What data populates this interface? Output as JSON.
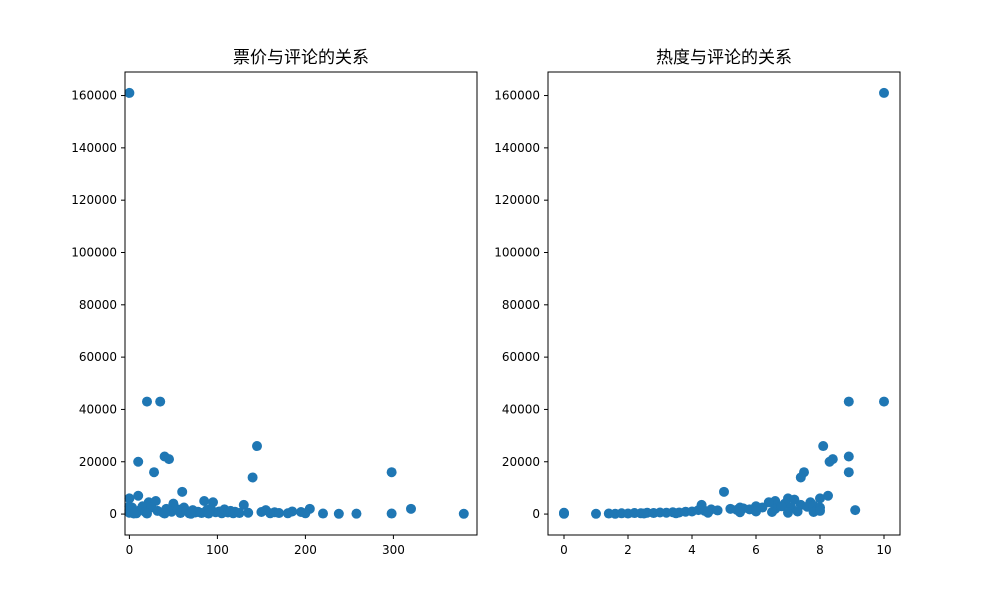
{
  "chart_data": [
    {
      "type": "scatter",
      "title": "票价与评论的关系",
      "xlabel": "",
      "ylabel": "",
      "xlim": [
        -5,
        395
      ],
      "ylim": [
        -8000,
        169000
      ],
      "xticks": [
        0,
        100,
        200,
        300
      ],
      "yticks": [
        0,
        20000,
        40000,
        60000,
        80000,
        100000,
        120000,
        140000,
        160000
      ],
      "grid": false,
      "color": "#1f77b4",
      "points": [
        [
          0,
          161000
        ],
        [
          20,
          43000
        ],
        [
          35,
          43000
        ],
        [
          145,
          26000
        ],
        [
          40,
          22000
        ],
        [
          45,
          21000
        ],
        [
          10,
          20000
        ],
        [
          298,
          16000
        ],
        [
          28,
          16000
        ],
        [
          140,
          14000
        ],
        [
          60,
          8500
        ],
        [
          10,
          7000
        ],
        [
          0,
          6000
        ],
        [
          85,
          5000
        ],
        [
          95,
          4500
        ],
        [
          22,
          4500
        ],
        [
          30,
          5000
        ],
        [
          50,
          4000
        ],
        [
          130,
          3500
        ],
        [
          320,
          2000
        ],
        [
          205,
          2000
        ],
        [
          185,
          1000
        ],
        [
          0,
          3000
        ],
        [
          0,
          1500
        ],
        [
          0,
          500
        ],
        [
          3,
          2500
        ],
        [
          6,
          1000
        ],
        [
          8,
          300
        ],
        [
          12,
          1500
        ],
        [
          15,
          3000
        ],
        [
          18,
          800
        ],
        [
          25,
          2500
        ],
        [
          32,
          1200
        ],
        [
          38,
          600
        ],
        [
          42,
          2000
        ],
        [
          48,
          900
        ],
        [
          55,
          1800
        ],
        [
          58,
          400
        ],
        [
          62,
          2500
        ],
        [
          65,
          1200
        ],
        [
          68,
          300
        ],
        [
          72,
          1500
        ],
        [
          75,
          600
        ],
        [
          78,
          900
        ],
        [
          82,
          400
        ],
        [
          88,
          1500
        ],
        [
          92,
          2000
        ],
        [
          98,
          700
        ],
        [
          102,
          1000
        ],
        [
          105,
          300
        ],
        [
          108,
          1800
        ],
        [
          112,
          600
        ],
        [
          115,
          1200
        ],
        [
          118,
          300
        ],
        [
          120,
          900
        ],
        [
          125,
          400
        ],
        [
          135,
          500
        ],
        [
          150,
          800
        ],
        [
          155,
          1500
        ],
        [
          160,
          300
        ],
        [
          165,
          700
        ],
        [
          170,
          400
        ],
        [
          180,
          300
        ],
        [
          195,
          800
        ],
        [
          200,
          300
        ],
        [
          220,
          200
        ],
        [
          238,
          100
        ],
        [
          258,
          150
        ],
        [
          298,
          200
        ],
        [
          380,
          100
        ],
        [
          5,
          200
        ],
        [
          20,
          200
        ],
        [
          40,
          200
        ],
        [
          70,
          100
        ],
        [
          90,
          200
        ]
      ]
    },
    {
      "type": "scatter",
      "title": "热度与评论的关系",
      "xlabel": "",
      "ylabel": "",
      "xlim": [
        -0.5,
        10.5
      ],
      "ylim": [
        -8000,
        169000
      ],
      "xticks": [
        0,
        2,
        4,
        6,
        8,
        10
      ],
      "yticks": [
        0,
        20000,
        40000,
        60000,
        80000,
        100000,
        120000,
        140000,
        160000
      ],
      "grid": false,
      "color": "#1f77b4",
      "points": [
        [
          10,
          161000
        ],
        [
          8.9,
          43000
        ],
        [
          10,
          43000
        ],
        [
          8.1,
          26000
        ],
        [
          8.9,
          22000
        ],
        [
          8.4,
          21000
        ],
        [
          8.3,
          20000
        ],
        [
          8.9,
          16000
        ],
        [
          7.5,
          16000
        ],
        [
          7.4,
          14000
        ],
        [
          5.0,
          8500
        ],
        [
          8.25,
          7000
        ],
        [
          7.0,
          6000
        ],
        [
          8.0,
          6000
        ],
        [
          6.6,
          5000
        ],
        [
          6.4,
          4500
        ],
        [
          7.2,
          5500
        ],
        [
          6.9,
          4000
        ],
        [
          7.7,
          4500
        ],
        [
          4.3,
          3500
        ],
        [
          9.1,
          1500
        ],
        [
          5.5,
          2500
        ],
        [
          6.0,
          3000
        ],
        [
          0,
          500
        ],
        [
          0,
          200
        ],
        [
          0,
          100
        ],
        [
          1.0,
          100
        ],
        [
          1.4,
          200
        ],
        [
          1.6,
          100
        ],
        [
          1.8,
          300
        ],
        [
          2.0,
          200
        ],
        [
          2.2,
          400
        ],
        [
          2.4,
          300
        ],
        [
          2.6,
          500
        ],
        [
          2.8,
          400
        ],
        [
          3.0,
          600
        ],
        [
          3.2,
          500
        ],
        [
          3.4,
          700
        ],
        [
          3.6,
          600
        ],
        [
          3.8,
          900
        ],
        [
          4.0,
          1000
        ],
        [
          4.2,
          1500
        ],
        [
          4.4,
          1200
        ],
        [
          4.6,
          1800
        ],
        [
          4.8,
          1400
        ],
        [
          5.2,
          2000
        ],
        [
          5.4,
          1600
        ],
        [
          5.6,
          2200
        ],
        [
          5.8,
          1800
        ],
        [
          6.2,
          2500
        ],
        [
          6.6,
          2000
        ],
        [
          6.8,
          3000
        ],
        [
          7.1,
          2500
        ],
        [
          7.4,
          3500
        ],
        [
          7.6,
          2800
        ],
        [
          7.8,
          3200
        ],
        [
          7.9,
          1500
        ],
        [
          8.0,
          2500
        ],
        [
          7.3,
          1000
        ],
        [
          6.5,
          800
        ],
        [
          3.5,
          300
        ],
        [
          2.5,
          200
        ],
        [
          4.5,
          500
        ],
        [
          5.5,
          700
        ],
        [
          6.0,
          1000
        ],
        [
          7.0,
          500
        ],
        [
          7.8,
          800
        ],
        [
          8.0,
          1200
        ]
      ]
    }
  ]
}
